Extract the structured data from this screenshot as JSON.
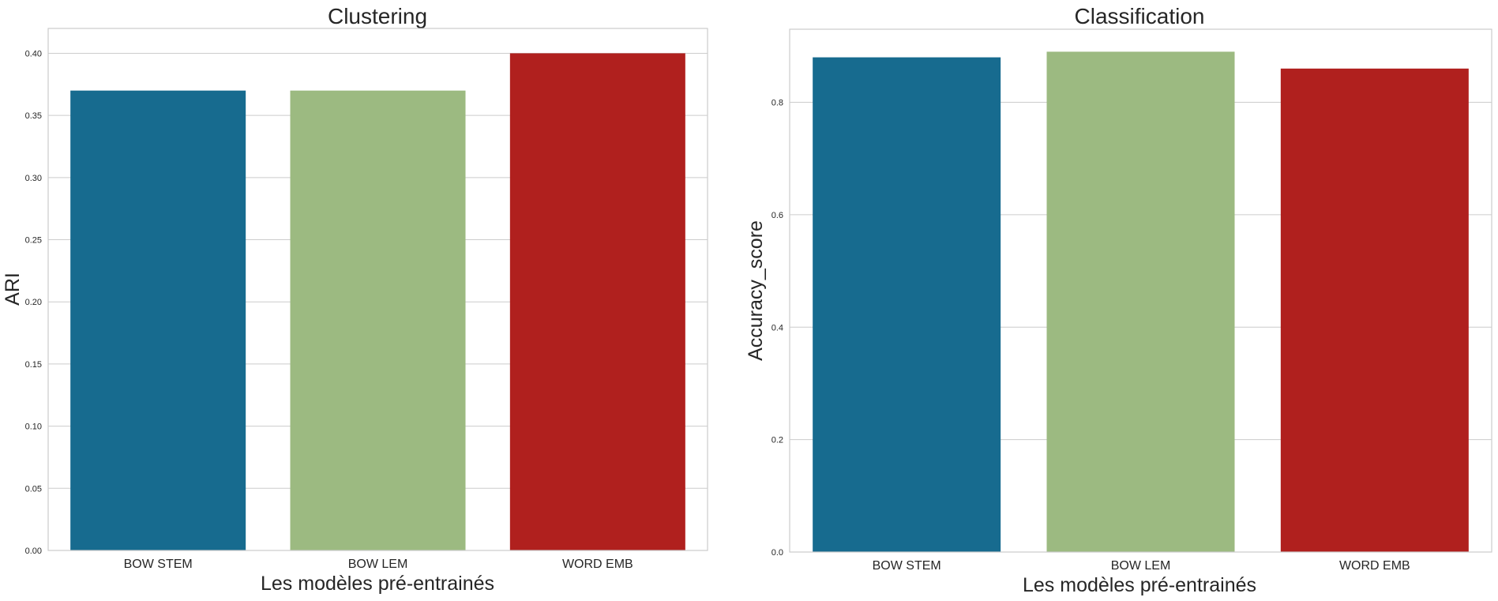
{
  "chart_data": [
    {
      "type": "bar",
      "title": "Clustering",
      "xlabel": "Les modèles pré-entrainés",
      "ylabel": "ARI",
      "categories": [
        "BOW STEM",
        "BOW LEM",
        "WORD EMB"
      ],
      "values": [
        0.37,
        0.37,
        0.4
      ],
      "colors": [
        "#176b8f",
        "#9cba81",
        "#b0201e"
      ],
      "ylim": [
        0,
        0.42
      ],
      "yticks": [
        0.0,
        0.05,
        0.1,
        0.15,
        0.2,
        0.25,
        0.3,
        0.35,
        0.4
      ],
      "ytick_labels": [
        "0.00",
        "0.05",
        "0.10",
        "0.15",
        "0.20",
        "0.25",
        "0.30",
        "0.35",
        "0.40"
      ],
      "grid": true
    },
    {
      "type": "bar",
      "title": "Classification",
      "xlabel": "Les modèles pré-entrainés",
      "ylabel": "Accuracy_score",
      "categories": [
        "BOW STEM",
        "BOW LEM",
        "WORD EMB"
      ],
      "values": [
        0.88,
        0.89,
        0.86
      ],
      "colors": [
        "#176b8f",
        "#9cba81",
        "#b0201e"
      ],
      "ylim": [
        0,
        0.93
      ],
      "yticks": [
        0.0,
        0.2,
        0.4,
        0.6,
        0.8
      ],
      "ytick_labels": [
        "0.0",
        "0.2",
        "0.4",
        "0.6",
        "0.8"
      ],
      "grid": true
    }
  ]
}
